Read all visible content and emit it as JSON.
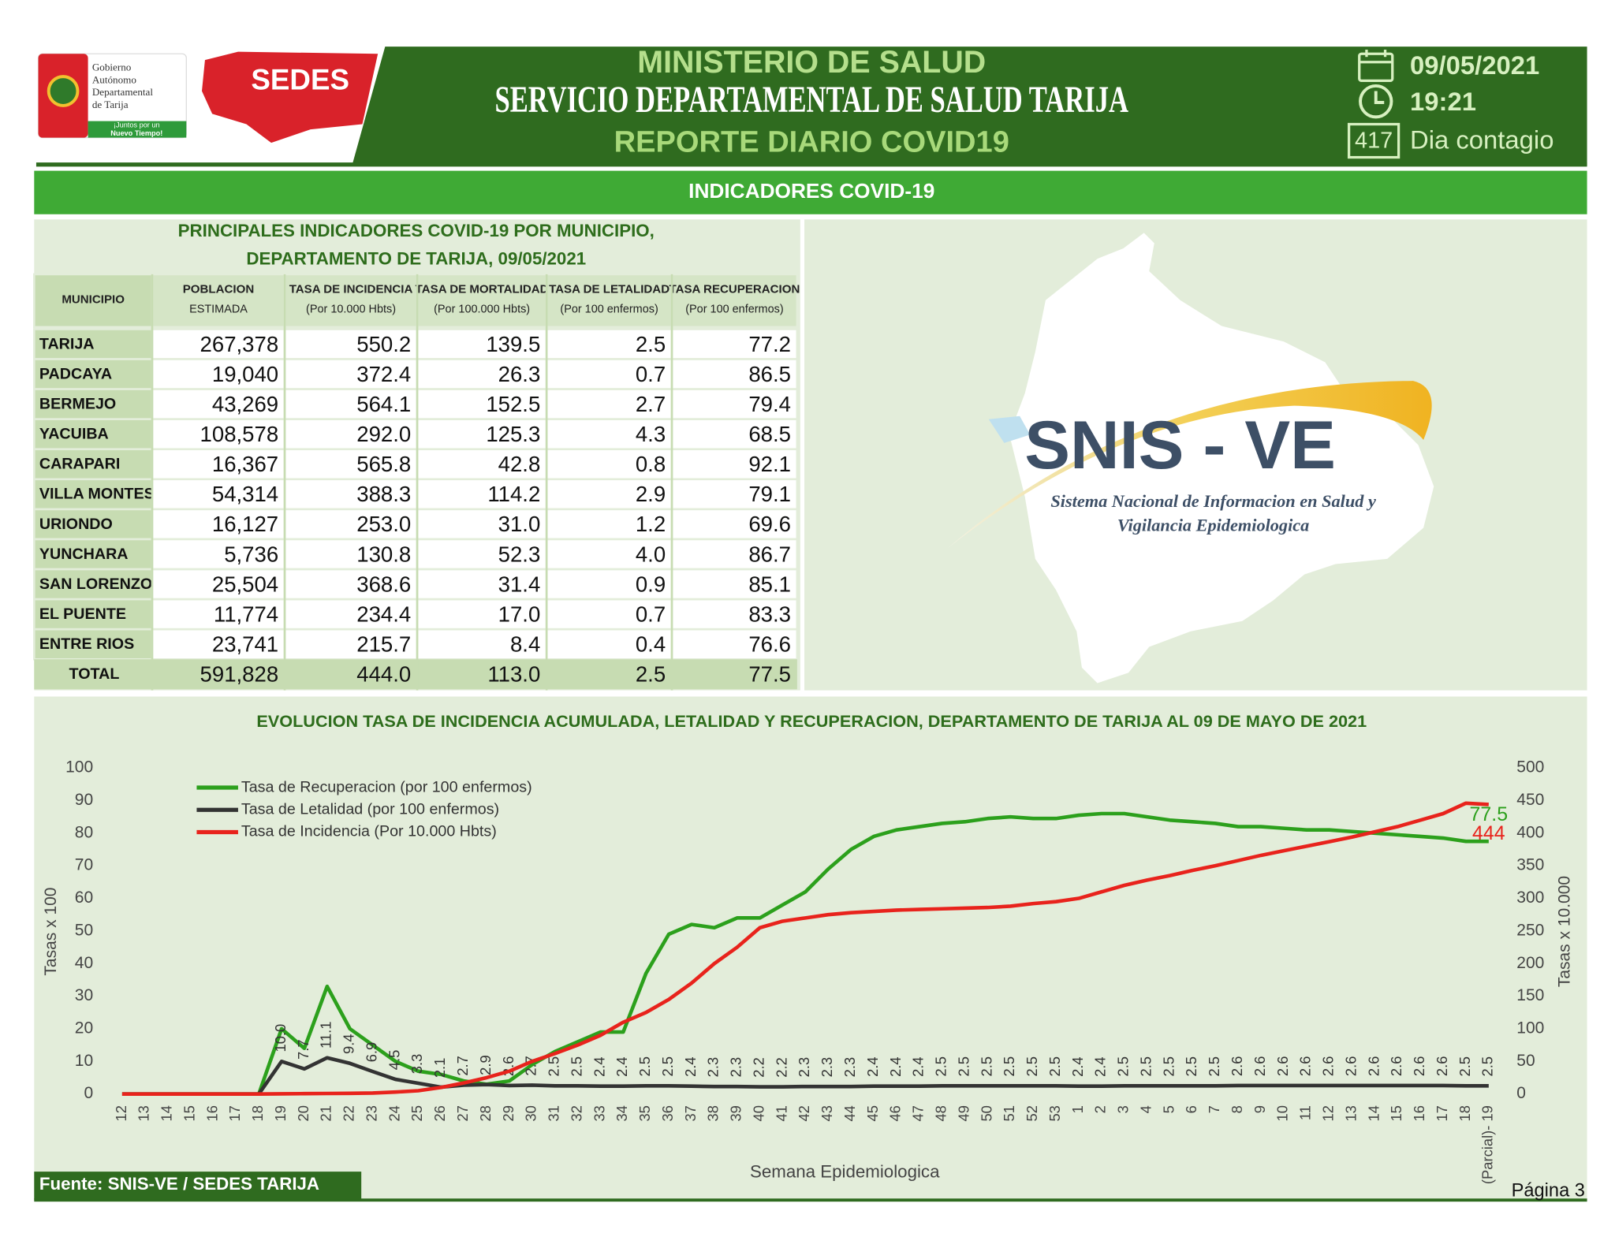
{
  "header": {
    "logo_gobierno": [
      "Gobierno",
      "Autónomo",
      "Departamental",
      "de Tarija"
    ],
    "logo_slogan": [
      "¡Juntos por un",
      "Nuevo Tiempo!"
    ],
    "logo_sedes": "SEDES",
    "title": "MINISTERIO DE SALUD",
    "subtitle": "SERVICIO DEPARTAMENTAL DE SALUD TARIJA",
    "report": "REPORTE DIARIO COVID19",
    "date": "09/05/2021",
    "time": "19:21",
    "day_count": "417",
    "day_label": "Dia contagio"
  },
  "section_title": "INDICADORES COVID-19",
  "table": {
    "title": [
      "PRINCIPALES INDICADORES COVID-19 POR MUNICIPIO,",
      "DEPARTAMENTO DE TARIJA, 09/05/2021"
    ],
    "header": [
      [
        "MUNICIPIO"
      ],
      [
        "POBLACION",
        "ESTIMADA"
      ],
      [
        "TASA DE INCIDENCIA",
        "(Por 10.000 Hbts)"
      ],
      [
        "TASA DE MORTALIDAD",
        "(Por 100.000 Hbts)"
      ],
      [
        "TASA DE LETALIDAD",
        "(Por 100 enfermos)"
      ],
      [
        "TASA RECUPERACION",
        "(Por 100 enfermos)"
      ]
    ],
    "rows": [
      [
        "TARIJA",
        "267,378",
        "550.2",
        "139.5",
        "2.5",
        "77.2"
      ],
      [
        "PADCAYA",
        "19,040",
        "372.4",
        "26.3",
        "0.7",
        "86.5"
      ],
      [
        "BERMEJO",
        "43,269",
        "564.1",
        "152.5",
        "2.7",
        "79.4"
      ],
      [
        "YACUIBA",
        "108,578",
        "292.0",
        "125.3",
        "4.3",
        "68.5"
      ],
      [
        "CARAPARI",
        "16,367",
        "565.8",
        "42.8",
        "0.8",
        "92.1"
      ],
      [
        "VILLA MONTES",
        "54,314",
        "388.3",
        "114.2",
        "2.9",
        "79.1"
      ],
      [
        "URIONDO",
        "16,127",
        "253.0",
        "31.0",
        "1.2",
        "69.6"
      ],
      [
        "YUNCHARA",
        "5,736",
        "130.8",
        "52.3",
        "4.0",
        "86.7"
      ],
      [
        "SAN LORENZO",
        "25,504",
        "368.6",
        "31.4",
        "0.9",
        "85.1"
      ],
      [
        "EL PUENTE",
        "11,774",
        "234.4",
        "17.0",
        "0.7",
        "83.3"
      ],
      [
        "ENTRE RIOS",
        "23,741",
        "215.7",
        "8.4",
        "0.4",
        "76.6"
      ]
    ],
    "total": [
      "TOTAL",
      "591,828",
      "444.0",
      "113.0",
      "2.5",
      "77.5"
    ]
  },
  "map": {
    "logo": "SNIS - VE",
    "caption": [
      "Sistema Nacional de Informacion en Salud y",
      "Vigilancia Epidemiologica"
    ]
  },
  "chart_data": {
    "type": "line",
    "title": "EVOLUCION TASA DE INCIDENCIA ACUMULADA, LETALIDAD Y RECUPERACION, DEPARTAMENTO DE TARIJA AL  09 DE MAYO DE 2021",
    "xlabel": "Semana Epidemiologica",
    "ylabel": "Tasas x 100",
    "y2label": "Tasas x 10.000",
    "categories": [
      "12",
      "13",
      "14",
      "15",
      "16",
      "17",
      "18",
      "19",
      "20",
      "21",
      "22",
      "23",
      "24",
      "25",
      "26",
      "27",
      "28",
      "29",
      "30",
      "31",
      "32",
      "33",
      "34",
      "35",
      "36",
      "37",
      "38",
      "39",
      "40",
      "41",
      "42",
      "43",
      "44",
      "45",
      "46",
      "47",
      "48",
      "49",
      "50",
      "51",
      "52",
      "53",
      "1",
      "2",
      "3",
      "4",
      "5",
      "6",
      "7",
      "8",
      "9",
      "10",
      "11",
      "12",
      "13",
      "14",
      "15",
      "16",
      "17",
      "18",
      "(Parcial)- 19"
    ],
    "ylim": [
      0,
      100
    ],
    "yticks": [
      0,
      10,
      20,
      30,
      40,
      50,
      60,
      70,
      80,
      90,
      100
    ],
    "y2lim": [
      0,
      500
    ],
    "y2ticks": [
      0,
      50,
      100,
      150,
      200,
      250,
      300,
      350,
      400,
      450,
      500
    ],
    "grid": false,
    "legend": "upper left",
    "series": [
      {
        "name": "Tasa de Recuperacion (por 100 enfermos)",
        "color": "#2ca01c",
        "end_label": true,
        "values": [
          0,
          0,
          0,
          0,
          0,
          0,
          0,
          20,
          14,
          33,
          20,
          15,
          10,
          7,
          6,
          4,
          3,
          4,
          9,
          13,
          16,
          19,
          19,
          37,
          49,
          52,
          51,
          54,
          54,
          58,
          62,
          69,
          75,
          79,
          81,
          82,
          83,
          83.5,
          84.5,
          85,
          84.5,
          84.5,
          85.5,
          86,
          86,
          85,
          84,
          83.5,
          83,
          82,
          82,
          81.5,
          81,
          81,
          80.5,
          80,
          79.5,
          79,
          78.5,
          77.5,
          77.5
        ]
      },
      {
        "name": "Tasa de Letalidad (por 100 enfermos)",
        "color": "#333333",
        "values": [
          0,
          0,
          0,
          0,
          0,
          0,
          0,
          10,
          7.7,
          11.1,
          9.4,
          6.9,
          4.5,
          3.3,
          2.1,
          2.7,
          2.9,
          2.6,
          2.7,
          2.5,
          2.5,
          2.4,
          2.4,
          2.5,
          2.5,
          2.4,
          2.3,
          2.3,
          2.2,
          2.2,
          2.3,
          2.3,
          2.3,
          2.4,
          2.4,
          2.4,
          2.5,
          2.5,
          2.5,
          2.5,
          2.5,
          2.5,
          2.4,
          2.4,
          2.5,
          2.5,
          2.5,
          2.5,
          2.5,
          2.6,
          2.6,
          2.6,
          2.6,
          2.6,
          2.6,
          2.6,
          2.6,
          2.6,
          2.6,
          2.5,
          2.5
        ],
        "value_labels": [
          null,
          null,
          null,
          null,
          null,
          null,
          null,
          "10.0",
          "7.7",
          "11.1",
          "9.4",
          "6.9",
          "4.5",
          "3.3",
          "2.1",
          "2.7",
          "2.9",
          "2.6",
          "2.7",
          "2.5",
          "2.5",
          "2.4",
          "2.4",
          "2.5",
          "2.5",
          "2.4",
          "2.3",
          "2.3",
          "2.2",
          "2.2",
          "2.3",
          "2.3",
          "2.3",
          "2.4",
          "2.4",
          "2.4",
          "2.5",
          "2.5",
          "2.5",
          "2.5",
          "2.5",
          "2.5",
          "2.4",
          "2.4",
          "2.5",
          "2.5",
          "2.5",
          "2.5",
          "2.5",
          "2.6",
          "2.6",
          "2.6",
          "2.6",
          "2.6",
          "2.6",
          "2.6",
          "2.6",
          "2.6",
          "2.6",
          "2.5",
          "2.5"
        ]
      },
      {
        "name": "Tasa de Incidencia (Por 10.000 Hbts)",
        "color": "#e8231c",
        "axis": "y2",
        "end_label": true,
        "values": [
          0,
          0,
          0,
          0,
          0,
          0,
          0,
          0.3,
          0.5,
          0.8,
          1,
          1.5,
          3,
          5,
          10,
          17,
          25,
          35,
          50,
          62,
          75,
          90,
          110,
          125,
          145,
          170,
          200,
          225,
          255,
          265,
          270,
          275,
          278,
          280,
          282,
          283,
          284,
          285,
          286,
          288,
          292,
          295,
          300,
          310,
          320,
          328,
          335,
          343,
          350,
          358,
          366,
          373,
          380,
          387,
          394,
          402,
          410,
          420,
          430,
          446,
          444
        ]
      }
    ]
  },
  "footer": {
    "source": "Fuente: SNIS-VE / SEDES TARIJA",
    "page": "Página 3"
  }
}
